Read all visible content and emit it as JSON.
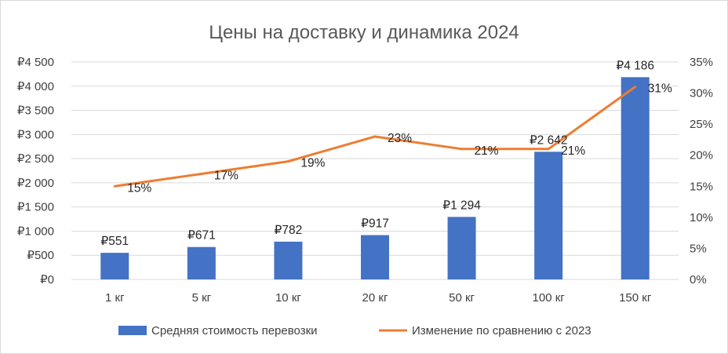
{
  "chart_data": {
    "type": "bar",
    "title": "Цены на доставку и динамика 2024",
    "categories": [
      "1 кг",
      "5 кг",
      "10 кг",
      "20 кг",
      "50 кг",
      "100 кг",
      "150 кг"
    ],
    "series": [
      {
        "name": "Средняя стоимость перевозки",
        "type": "bar",
        "axis": "left",
        "color": "#4472C4",
        "values": [
          551,
          671,
          782,
          917,
          1294,
          2642,
          4186
        ],
        "labels": [
          "₽551",
          "₽671",
          "₽782",
          "₽917",
          "₽1 294",
          "₽2 642",
          "₽4 186"
        ]
      },
      {
        "name": "Изменение по сравнению с 2023",
        "type": "line",
        "axis": "right",
        "color": "#ED7D31",
        "values": [
          15,
          17,
          19,
          23,
          21,
          21,
          31
        ],
        "labels": [
          "15%",
          "17%",
          "19%",
          "23%",
          "21%",
          "21%",
          "31%"
        ]
      }
    ],
    "left_axis": {
      "ylim": [
        0,
        4500
      ],
      "ticks": [
        0,
        500,
        1000,
        1500,
        2000,
        2500,
        3000,
        3500,
        4000,
        4500
      ],
      "tick_labels": [
        "₽0",
        "₽500",
        "₽1 000",
        "₽1 500",
        "₽2 000",
        "₽2 500",
        "₽3 000",
        "₽3 500",
        "₽4 000",
        "₽4 500"
      ]
    },
    "right_axis": {
      "ylim": [
        0,
        35
      ],
      "ticks": [
        0,
        5,
        10,
        15,
        20,
        25,
        30,
        35
      ],
      "tick_labels": [
        "0%",
        "5%",
        "10%",
        "15%",
        "20%",
        "25%",
        "30%",
        "35%"
      ]
    },
    "grid": true,
    "legend_position": "bottom"
  }
}
